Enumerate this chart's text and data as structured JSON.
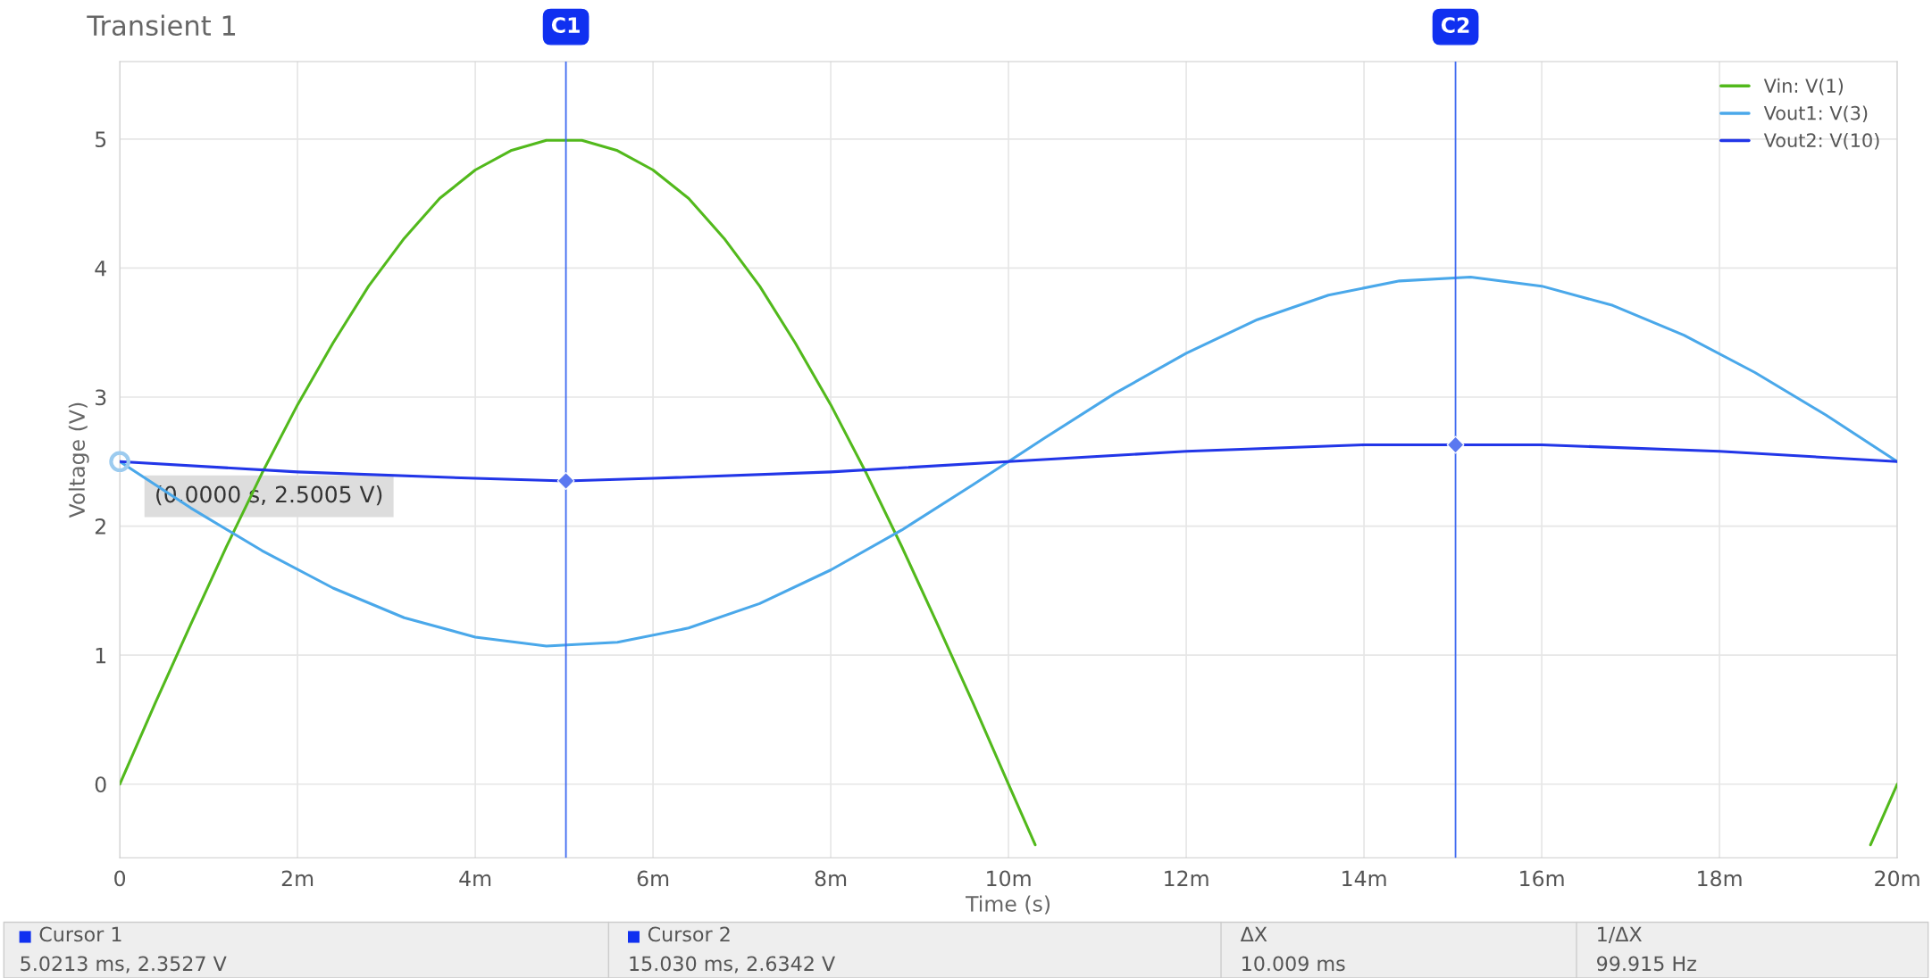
{
  "chart_data": {
    "type": "line",
    "title": "Transient 1",
    "xlabel": "Time (s)",
    "ylabel": "Voltage (V)",
    "xlim": [
      0,
      20
    ],
    "ylim": [
      -0.57,
      5.6
    ],
    "xticks": [
      0,
      {
        "value": 2,
        "label": "2m"
      },
      {
        "value": 4,
        "label": "4m"
      },
      {
        "value": 6,
        "label": "6m"
      },
      {
        "value": 8,
        "label": "8m"
      },
      {
        "value": 10,
        "label": "10m"
      },
      {
        "value": 12,
        "label": "12m"
      },
      {
        "value": 14,
        "label": "14m"
      },
      {
        "value": 16,
        "label": "16m"
      },
      {
        "value": 18,
        "label": "18m"
      },
      {
        "value": 20,
        "label": "20m"
      }
    ],
    "yticks": [
      0,
      1,
      2,
      3,
      4,
      5
    ],
    "grid": true,
    "legend": "top right",
    "line_style": "solid",
    "marker": "none",
    "series": [
      {
        "name": "Vin: V(1)",
        "color": "#52b91c",
        "x": [
          0,
          0.4,
          0.8,
          1.2,
          1.6,
          2,
          2.4,
          2.8,
          3.2,
          3.6,
          4,
          4.4,
          4.8,
          5.2,
          5.6,
          6,
          6.4,
          6.8,
          7.2,
          7.6,
          8,
          8.4,
          8.8,
          9.2,
          9.6,
          10,
          10.3,
          15,
          19.7,
          20
        ],
        "values": [
          0,
          0.63,
          1.24,
          1.84,
          2.41,
          2.94,
          3.42,
          3.86,
          4.23,
          4.54,
          4.76,
          4.91,
          4.99,
          4.99,
          4.91,
          4.76,
          4.54,
          4.23,
          3.86,
          3.42,
          2.94,
          2.41,
          1.84,
          1.24,
          0.63,
          0,
          -0.47,
          null,
          -0.47,
          0
        ]
      },
      {
        "name": "Vout1: V(3)",
        "color": "#4aa8ea",
        "x": [
          0,
          0.8,
          1.6,
          2.4,
          3.2,
          4,
          4.8,
          5.6,
          6.4,
          7.2,
          8,
          8.8,
          9.6,
          10.4,
          11.2,
          12,
          12.8,
          13.6,
          14.4,
          15.2,
          16,
          16.8,
          17.6,
          18.4,
          19.2,
          20
        ],
        "values": [
          2.5,
          2.14,
          1.81,
          1.52,
          1.29,
          1.14,
          1.07,
          1.1,
          1.21,
          1.4,
          1.66,
          1.97,
          2.32,
          2.68,
          3.03,
          3.34,
          3.6,
          3.79,
          3.9,
          3.93,
          3.86,
          3.71,
          3.48,
          3.19,
          2.86,
          2.5
        ]
      },
      {
        "name": "Vout2: V(10)",
        "color": "#2236e8",
        "x": [
          0,
          2,
          4,
          5.02,
          6,
          8,
          10,
          12,
          14,
          15.03,
          16,
          18,
          20
        ],
        "values": [
          2.5,
          2.42,
          2.37,
          2.35,
          2.37,
          2.42,
          2.5,
          2.58,
          2.63,
          2.63,
          2.63,
          2.58,
          2.5
        ]
      },
      {
        "type": "scatter",
        "marker": "diamond",
        "color": "#5a78f0",
        "x": [
          5.02,
          15.03
        ],
        "values": [
          2.35,
          2.63
        ]
      }
    ],
    "ref_lines": [
      {
        "axis": "x",
        "value": 5.02,
        "label": "C1",
        "color": "#3f6af0"
      },
      {
        "axis": "x",
        "value": 15.03,
        "label": "C2",
        "color": "#3f6af0"
      }
    ],
    "annotations": [
      {
        "text": "(0.0000 s, 2.5005 V)",
        "x": 0,
        "y": 2.5
      },
      "Cursor 1",
      "Cursor 2",
      "ΔX",
      "1/ΔX",
      "5.0213 ms, 2.3527 V",
      "15.030 ms, 2.6342 V",
      "10.009 ms",
      "99.915 Hz"
    ]
  }
}
